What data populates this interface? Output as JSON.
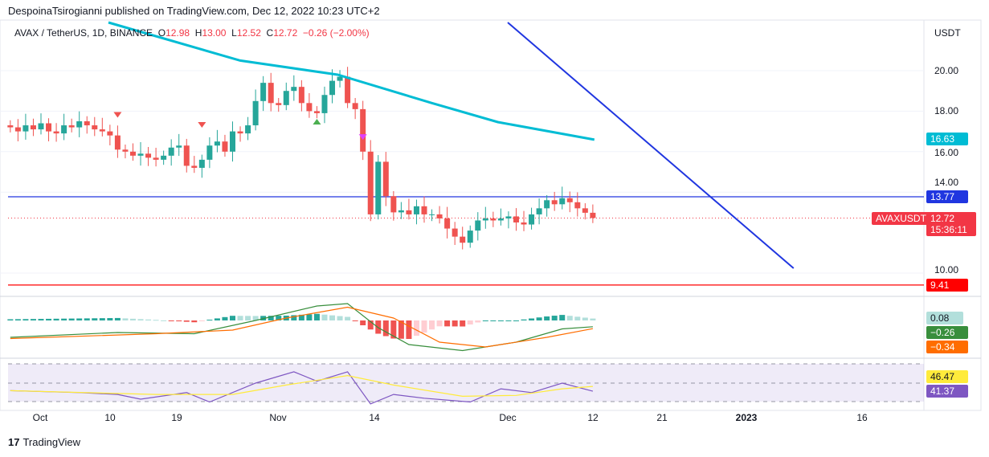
{
  "header": {
    "published": "DespoinaTsirogianni published on TradingView.com, Dec 12, 2022 10:23 UTC+2"
  },
  "legend": {
    "symbol": "AVAX / TetherUS, 1D, BINANCE",
    "o_label": "O",
    "o": "12.98",
    "h_label": "H",
    "h": "13.00",
    "l_label": "L",
    "l": "12.52",
    "c_label": "C",
    "c": "12.72",
    "change": "−0.26 (−2.00%)"
  },
  "price_axis": {
    "currency": "USDT",
    "ticks": [
      "20.00",
      "18.00",
      "16.00",
      "14.00",
      "10.00"
    ]
  },
  "badges": {
    "ma": "16.63",
    "hline_blue": "13.77",
    "symbol": "AVAXUSDT",
    "last": "12.72",
    "countdown": "15:36:11",
    "hline_red": "9.41",
    "macd_hist": "0.08",
    "macd": "−0.26",
    "signal": "−0.34",
    "rsi_ma": "46.47",
    "rsi": "41.37"
  },
  "time_axis": [
    "Oct",
    "10",
    "19",
    "Nov",
    "14",
    "Dec",
    "12",
    "21",
    "2023",
    "16"
  ],
  "colors": {
    "up": "#26a69a",
    "down": "#ef5350",
    "ma": "#00bcd4",
    "trend": "#2036e0",
    "red": "#ff0000"
  },
  "footer": {
    "brand": "TradingView"
  },
  "chart_data": {
    "type": "candlestick",
    "start_day": -4,
    "closes": [
      17.2,
      17.0,
      17.3,
      17.1,
      17.4,
      17.0,
      16.9,
      17.3,
      17.2,
      17.5,
      17.3,
      17.1,
      17.0,
      16.8,
      16.1,
      16.0,
      15.8,
      15.9,
      15.7,
      15.6,
      15.8,
      16.2,
      16.3,
      15.3,
      15.2,
      15.6,
      16.3,
      16.5,
      16.0,
      17.0,
      16.9,
      17.3,
      18.5,
      19.4,
      18.4,
      18.3,
      19.0,
      19.2,
      18.4,
      18.0,
      17.9,
      18.8,
      19.5,
      19.7,
      18.4,
      18.1,
      16.0,
      12.9,
      15.5,
      13.8,
      13.0,
      13.1,
      12.9,
      13.3,
      12.9,
      12.9,
      12.7,
      12.2,
      11.8,
      11.5,
      12.1,
      12.6,
      12.7,
      12.6,
      12.7,
      12.8,
      12.5,
      12.4,
      12.9,
      13.2,
      13.6,
      13.4,
      13.7,
      13.5,
      13.2,
      12.98,
      12.72
    ],
    "ma": [
      [
        8.8,
        22.38
      ],
      [
        26,
        20.5
      ],
      [
        38.7,
        19.8
      ],
      [
        51,
        18.4
      ],
      [
        59.6,
        17.46
      ],
      [
        72.2,
        16.59
      ]
    ],
    "trendline": [
      [
        60.9,
        22.38
      ],
      [
        98.2,
        10.24
      ]
    ],
    "hlines": [
      13.77,
      9.41
    ],
    "last_price": 12.72,
    "macd": [
      [
        -4,
        -0.7
      ],
      [
        10,
        -0.5
      ],
      [
        20,
        -0.55
      ],
      [
        28,
        0.0
      ],
      [
        36,
        0.6
      ],
      [
        40,
        0.7
      ],
      [
        44,
        -0.3
      ],
      [
        48,
        -1.0
      ],
      [
        55,
        -1.25
      ],
      [
        62,
        -0.9
      ],
      [
        68,
        -0.35
      ],
      [
        72,
        -0.26
      ]
    ],
    "signal": [
      [
        -4,
        -0.75
      ],
      [
        15,
        -0.55
      ],
      [
        25,
        -0.4
      ],
      [
        32,
        0.1
      ],
      [
        40,
        0.55
      ],
      [
        46,
        0.1
      ],
      [
        52,
        -0.9
      ],
      [
        58,
        -1.1
      ],
      [
        66,
        -0.7
      ],
      [
        72,
        -0.34
      ]
    ],
    "rsi": [
      [
        -4,
        42
      ],
      [
        5,
        40
      ],
      [
        10,
        38
      ],
      [
        13,
        33
      ],
      [
        19,
        40
      ],
      [
        22,
        30
      ],
      [
        28,
        50
      ],
      [
        33,
        62
      ],
      [
        36,
        52
      ],
      [
        40,
        62
      ],
      [
        43,
        28
      ],
      [
        46,
        38
      ],
      [
        50,
        34
      ],
      [
        56,
        30
      ],
      [
        60,
        44
      ],
      [
        64,
        40
      ],
      [
        68,
        50
      ],
      [
        72,
        41.37
      ]
    ],
    "rsi_ma": [
      [
        -4,
        42
      ],
      [
        15,
        38
      ],
      [
        25,
        38
      ],
      [
        32,
        48
      ],
      [
        40,
        58
      ],
      [
        46,
        48
      ],
      [
        55,
        36
      ],
      [
        62,
        37
      ],
      [
        68,
        44
      ],
      [
        72,
        46.47
      ]
    ]
  }
}
